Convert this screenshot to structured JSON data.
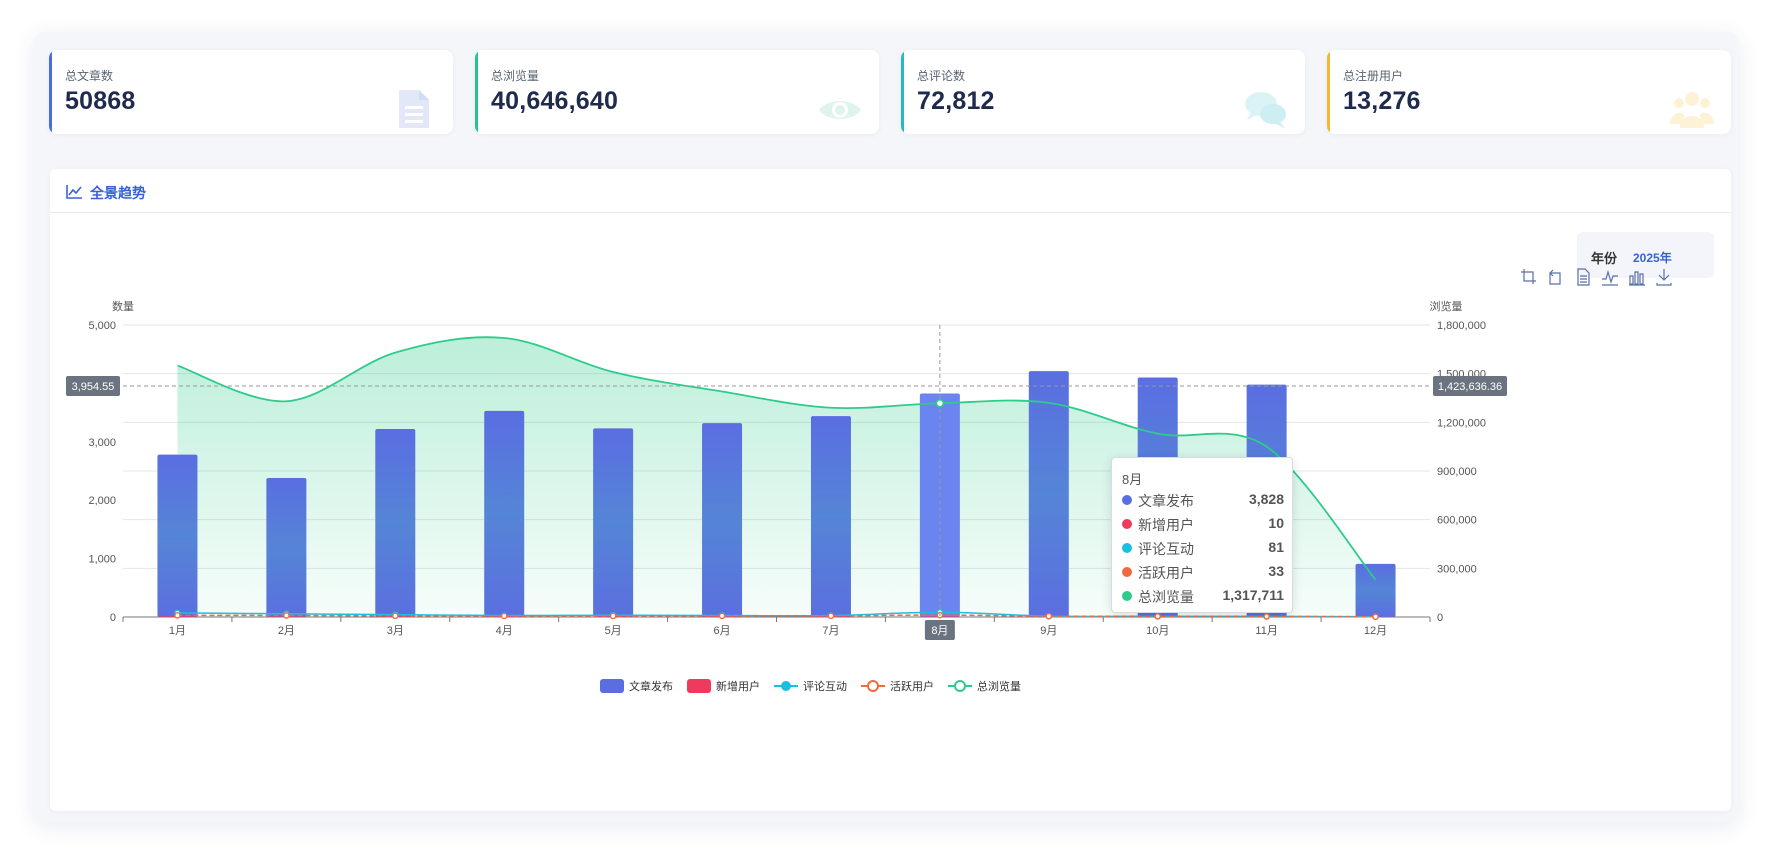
{
  "cards": [
    {
      "label": "总文章数",
      "value": "50868",
      "accent": "#4a6fdc",
      "icon": "document-icon"
    },
    {
      "label": "总浏览量",
      "value": "40,646,640",
      "accent": "#27c48a",
      "icon": "eye-icon"
    },
    {
      "label": "总评论数",
      "value": "72,812",
      "accent": "#27b8c8",
      "icon": "comments-icon"
    },
    {
      "label": "总注册用户",
      "value": "13,276",
      "accent": "#f2b92e",
      "icon": "users-icon"
    }
  ],
  "panel": {
    "title": "全景趋势",
    "icon": "line-chart-icon"
  },
  "year_filter": {
    "label": "年份",
    "value": "2025年"
  },
  "toolbox": [
    "zoom-icon",
    "zoom-reset-icon",
    "data-view-icon",
    "line-switch-icon",
    "bar-switch-icon",
    "download-icon"
  ],
  "tooltip": {
    "title": "8月",
    "rows": [
      {
        "name": "文章发布",
        "value": "3,828",
        "color": "#5b6ee1"
      },
      {
        "name": "新增用户",
        "value": "10",
        "color": "#ee3a5c"
      },
      {
        "name": "评论互动",
        "value": "81",
        "color": "#1bbfe0"
      },
      {
        "name": "活跃用户",
        "value": "33",
        "color": "#f06a3f"
      },
      {
        "name": "总浏览量",
        "value": "1,317,711",
        "color": "#2dcc8a"
      }
    ]
  },
  "chart_data": {
    "type": "bar",
    "categories": [
      "1月",
      "2月",
      "3月",
      "4月",
      "5月",
      "6月",
      "7月",
      "8月",
      "9月",
      "10月",
      "11月",
      "12月"
    ],
    "y_left": {
      "label": "数量",
      "min": 0,
      "max": 5000,
      "ticks": [
        "0",
        "1,000",
        "2,000",
        "3,000",
        "5,000"
      ],
      "tick_values": [
        0,
        1000,
        2000,
        3000,
        5000
      ]
    },
    "y_right": {
      "label": "浏览量",
      "min": 0,
      "max": 1800000,
      "ticks": [
        "0",
        "300,000",
        "600,000",
        "900,000",
        "1,200,000",
        "1,500,000",
        "1,800,000"
      ],
      "tick_values": [
        0,
        300000,
        600000,
        900000,
        1200000,
        1500000,
        1800000
      ]
    },
    "series": [
      {
        "name": "文章发布",
        "type": "bar",
        "axis": "left",
        "color": "#5b6ee1",
        "values": [
          2780,
          2380,
          3220,
          3530,
          3230,
          3320,
          3440,
          3828,
          4210,
          4100,
          3980,
          910
        ]
      },
      {
        "name": "新增用户",
        "type": "bar",
        "axis": "left",
        "color": "#ee3a5c",
        "values": [
          12,
          10,
          9,
          8,
          8,
          9,
          10,
          10,
          7,
          6,
          6,
          3
        ]
      },
      {
        "name": "评论互动",
        "type": "line",
        "axis": "left",
        "color": "#1bbfe0",
        "values": [
          70,
          55,
          40,
          25,
          30,
          25,
          25,
          81,
          15,
          12,
          10,
          5
        ]
      },
      {
        "name": "活跃用户",
        "type": "line",
        "axis": "left",
        "color": "#f06a3f",
        "values": [
          28,
          26,
          20,
          18,
          18,
          19,
          20,
          33,
          14,
          12,
          10,
          4
        ]
      },
      {
        "name": "总浏览量",
        "type": "area",
        "axis": "right",
        "color": "#2dcc8a",
        "values": [
          1550000,
          1330000,
          1630000,
          1720000,
          1510000,
          1390000,
          1290000,
          1317711,
          1320000,
          1130000,
          1050000,
          230000
        ]
      }
    ],
    "crosshair": {
      "category": "8月",
      "left_value": "3,954.55",
      "right_value": "1,423,636.36"
    },
    "legend_position": "bottom-center",
    "grid": true
  }
}
